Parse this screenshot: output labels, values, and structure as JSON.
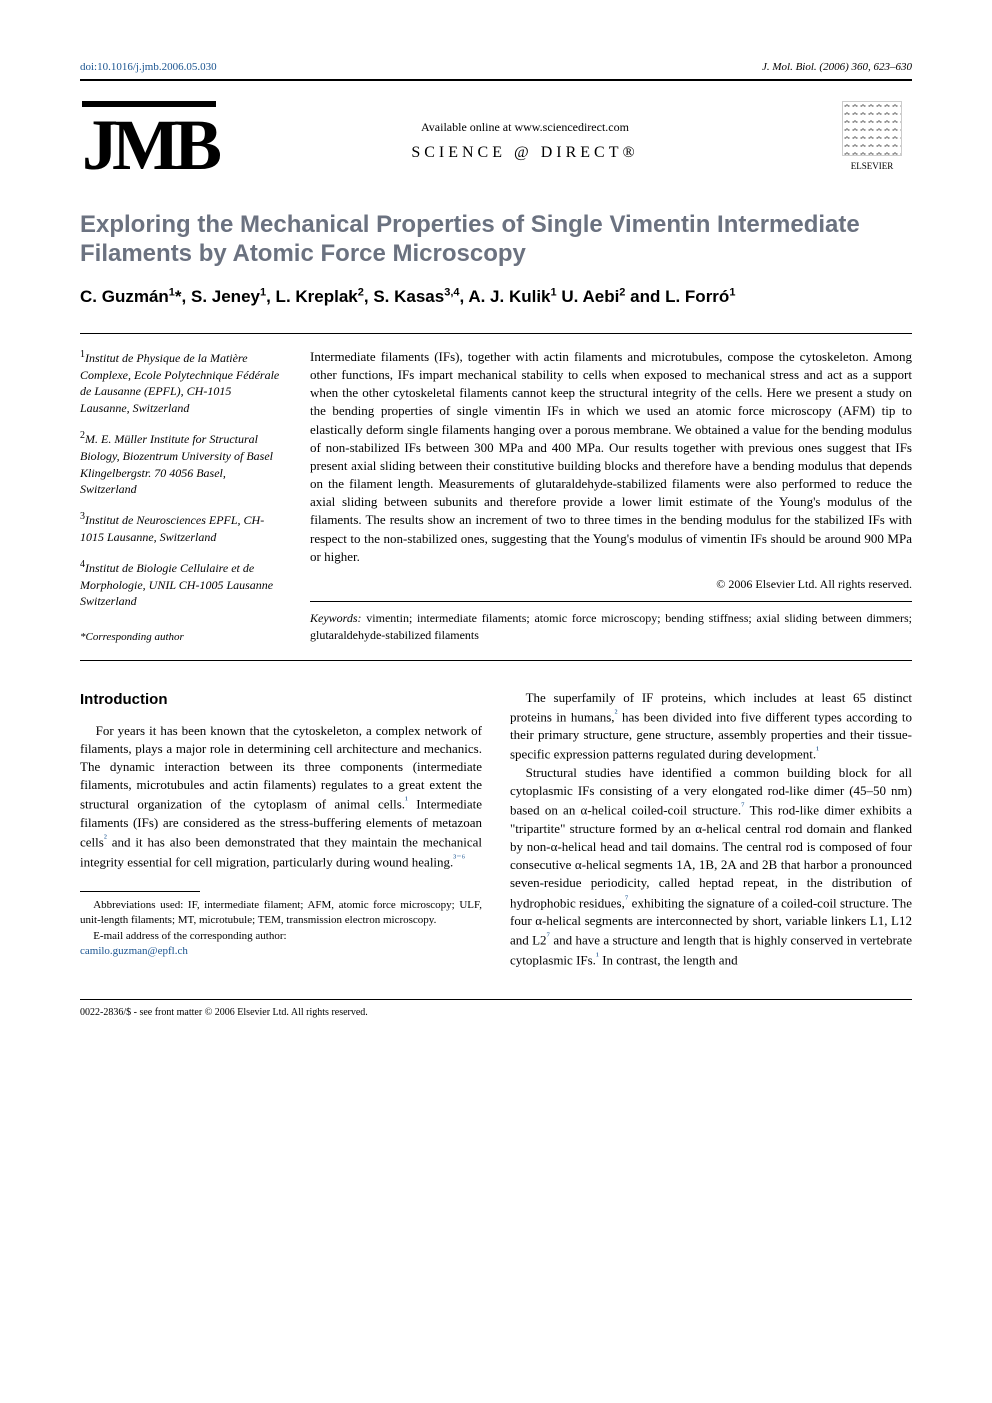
{
  "header": {
    "doi": "doi:10.1016/j.jmb.2006.05.030",
    "journal_ref": "J. Mol. Biol. (2006) 360, 623–630"
  },
  "logos": {
    "jmb": "JMB",
    "sd_available": "Available online at www.sciencedirect.com",
    "sd_brand": "SCIENCE @ DIRECT®",
    "elsevier": "ELSEVIER"
  },
  "title": "Exploring the Mechanical Properties of Single Vimentin Intermediate Filaments by Atomic Force Microscopy",
  "authors_html": "C. Guzmán<sup>1</sup>*, S. Jeney<sup>1</sup>, L. Kreplak<sup>2</sup>, S. Kasas<sup>3,4</sup>, A. J. Kulik<sup>1</sup> U. Aebi<sup>2</sup> and L. Forró<sup>1</sup>",
  "affiliations": [
    {
      "sup": "1",
      "text": "Institut de Physique de la Matière Complexe, Ecole Polytechnique Fédérale de Lausanne (EPFL), CH-1015 Lausanne, Switzerland"
    },
    {
      "sup": "2",
      "text": "M. E. Müller Institute for Structural Biology, Biozentrum University of Basel Klingelbergstr. 70 4056 Basel, Switzerland"
    },
    {
      "sup": "3",
      "text": "Institut de Neurosciences EPFL, CH-1015 Lausanne, Switzerland"
    },
    {
      "sup": "4",
      "text": "Institut de Biologie Cellulaire et de Morphologie, UNIL CH-1005 Lausanne Switzerland"
    }
  ],
  "corresponding": "*Corresponding author",
  "abstract": "Intermediate filaments (IFs), together with actin filaments and microtubules, compose the cytoskeleton. Among other functions, IFs impart mechanical stability to cells when exposed to mechanical stress and act as a support when the other cytoskeletal filaments cannot keep the structural integrity of the cells. Here we present a study on the bending properties of single vimentin IFs in which we used an atomic force microscopy (AFM) tip to elastically deform single filaments hanging over a porous membrane. We obtained a value for the bending modulus of non-stabilized IFs between 300 MPa and 400 MPa. Our results together with previous ones suggest that IFs present axial sliding between their constitutive building blocks and therefore have a bending modulus that depends on the filament length. Measurements of glutaraldehyde-stabilized filaments were also performed to reduce the axial sliding between subunits and therefore provide a lower limit estimate of the Young's modulus of the filaments. The results show an increment of two to three times in the bending modulus for the stabilized IFs with respect to the non-stabilized ones, suggesting that the Young's modulus of vimentin IFs should be around 900 MPa or higher.",
  "copyright": "© 2006 Elsevier Ltd. All rights reserved.",
  "keywords_label": "Keywords:",
  "keywords": "vimentin; intermediate filaments; atomic force microscopy; bending stiffness; axial sliding between dimmers; glutaraldehyde-stabilized filaments",
  "sections": {
    "introduction": {
      "heading": "Introduction",
      "left_paras": [
        "For years it has been known that the cytoskeleton, a complex network of filaments, plays a major role in determining cell architecture and mechanics. The dynamic interaction between its three components (intermediate filaments, microtubules and actin filaments) regulates to a great extent the structural organization of the cytoplasm of animal cells.¹ Intermediate filaments (IFs) are considered as the stress-buffering elements of metazoan cells² and it has also been demonstrated that they maintain the mechanical integrity essential for cell migration, particularly during wound healing.³⁻⁶"
      ],
      "right_paras": [
        "The superfamily of IF proteins, which includes at least 65 distinct proteins in humans,² has been divided into five different types according to their primary structure, gene structure, assembly properties and their tissue-specific expression patterns regulated during development.¹",
        "Structural studies have identified a common building block for all cytoplasmic IFs consisting of a very elongated rod-like dimer (45–50 nm) based on an α-helical coiled-coil structure.⁷ This rod-like dimer exhibits a \"tripartite\" structure formed by an α-helical central rod domain and flanked by non-α-helical head and tail domains. The central rod is composed of four consecutive α-helical segments 1A, 1B, 2A and 2B that harbor a pronounced seven-residue periodicity, called heptad repeat, in the distribution of hydrophobic residues,⁷ exhibiting the signature of a coiled-coil structure. The four α-helical segments are interconnected by short, variable linkers L1, L12 and L2⁷ and have a structure and length that is highly conserved in vertebrate cytoplasmic IFs.¹ In contrast, the length and"
      ]
    }
  },
  "footnotes": {
    "abbrev": "Abbreviations used: IF, intermediate filament; AFM, atomic force microscopy; ULF, unit-length filaments; MT, microtubule; TEM, transmission electron microscopy.",
    "email_label": "E-mail address of the corresponding author:",
    "email": "camilo.guzman@epfl.ch"
  },
  "bottom": "0022-2836/$ - see front matter © 2006 Elsevier Ltd. All rights reserved.",
  "colors": {
    "link": "#1a5490",
    "title_gray": "#6b7280"
  }
}
